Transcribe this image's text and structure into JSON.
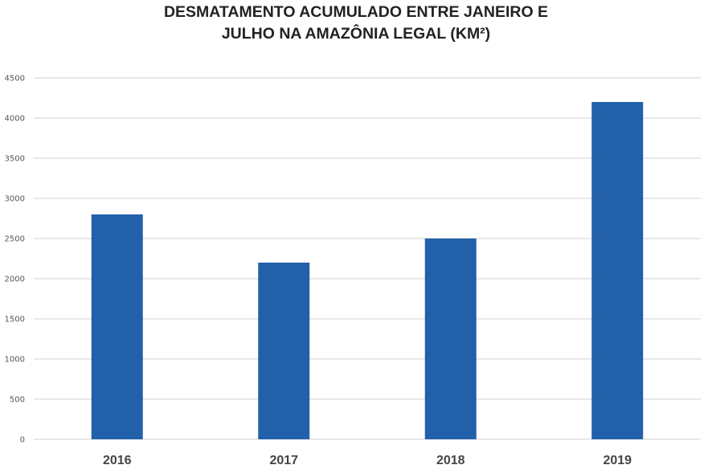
{
  "chart_data": {
    "type": "bar",
    "title_lines": [
      "DESMATAMENTO ACUMULADO ENTRE JANEIRO E",
      "JULHO NA AMAZÔNIA LEGAL (KM²)"
    ],
    "xlabel": "",
    "ylabel": "",
    "categories": [
      "2016",
      "2017",
      "2018",
      "2019"
    ],
    "values": [
      2800,
      2200,
      2500,
      4200
    ],
    "ylim": [
      0,
      4500
    ],
    "yticks": [
      0,
      500,
      1000,
      1500,
      2000,
      2500,
      3000,
      3500,
      4000,
      4500
    ],
    "grid": true,
    "legend": "none",
    "bar_color": "#2360AA",
    "grid_color": "#d0d0d0"
  }
}
